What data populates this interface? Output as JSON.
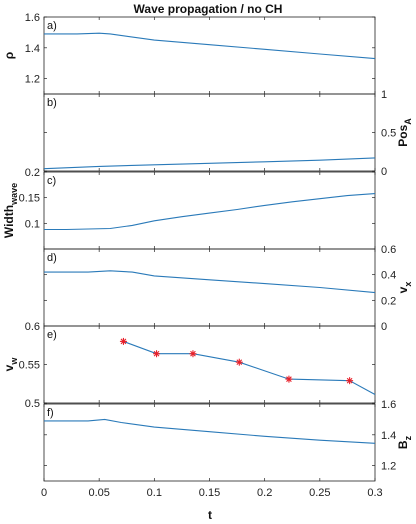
{
  "chart_data": {
    "type": "line",
    "title": "Wave propagation / no CH",
    "xlabel": "t",
    "xlim": [
      0,
      0.3
    ],
    "xticks": [
      "0",
      "0.05",
      "0.1",
      "0.15",
      "0.2",
      "0.25",
      "0.3"
    ],
    "line_color": "#2a7ab9",
    "marker_color": "#e8202a",
    "panels": [
      {
        "label": "a)",
        "ylabel": "ρ",
        "ylabel_side": "left",
        "ylim": [
          1.1,
          1.6
        ],
        "yticks": [
          "1.2",
          "1.4",
          "1.6"
        ],
        "series": [
          {
            "x": [
              0,
              0.03,
              0.05,
              0.06,
              0.1,
              0.15,
              0.2,
              0.25,
              0.3
            ],
            "y": [
              1.49,
              1.49,
              1.495,
              1.49,
              1.45,
              1.42,
              1.39,
              1.36,
              1.33
            ]
          }
        ]
      },
      {
        "label": "b)",
        "ylabel": "Pos_A",
        "ylabel_side": "right",
        "ylim": [
          0,
          1
        ],
        "yticks": [
          "0",
          "0.5",
          "1"
        ],
        "series": [
          {
            "x": [
              0,
              0.05,
              0.1,
              0.15,
              0.2,
              0.25,
              0.3
            ],
            "y": [
              0.03,
              0.06,
              0.08,
              0.1,
              0.12,
              0.14,
              0.17
            ]
          }
        ]
      },
      {
        "label": "c)",
        "ylabel": "Width_wave",
        "ylabel_side": "left",
        "ylim": [
          0.05,
          0.2
        ],
        "yticks": [
          "0.1",
          "0.15",
          "0.2"
        ],
        "series": [
          {
            "x": [
              0,
              0.02,
              0.04,
              0.06,
              0.08,
              0.1,
              0.125,
              0.15,
              0.175,
              0.2,
              0.225,
              0.25,
              0.275,
              0.3
            ],
            "y": [
              0.088,
              0.088,
              0.089,
              0.09,
              0.096,
              0.105,
              0.113,
              0.12,
              0.127,
              0.135,
              0.142,
              0.148,
              0.154,
              0.158
            ]
          }
        ]
      },
      {
        "label": "d)",
        "ylabel": "v_x",
        "ylabel_side": "right",
        "ylim": [
          0,
          0.6
        ],
        "yticks": [
          "0",
          "0.2",
          "0.4",
          "0.6"
        ],
        "series": [
          {
            "x": [
              0,
              0.04,
              0.06,
              0.08,
              0.1,
              0.15,
              0.2,
              0.25,
              0.3
            ],
            "y": [
              0.42,
              0.42,
              0.43,
              0.42,
              0.39,
              0.36,
              0.33,
              0.3,
              0.26
            ]
          }
        ]
      },
      {
        "label": "e)",
        "ylabel": "v_w",
        "ylabel_side": "left",
        "ylim": [
          0.5,
          0.6
        ],
        "yticks": [
          "0.5",
          "0.55",
          "0.6"
        ],
        "series": [
          {
            "x": [
              0.072,
              0.102,
              0.135,
              0.177,
              0.222,
              0.277,
              0.3
            ],
            "y": [
              0.58,
              0.564,
              0.564,
              0.553,
              0.531,
              0.529,
              0.511
            ]
          }
        ],
        "markers": {
          "x": [
            0.072,
            0.102,
            0.135,
            0.177,
            0.222,
            0.277
          ],
          "y": [
            0.58,
            0.564,
            0.564,
            0.553,
            0.531,
            0.529
          ]
        }
      },
      {
        "label": "f)",
        "ylabel": "B_z",
        "ylabel_side": "right",
        "ylim": [
          1.1,
          1.6
        ],
        "yticks": [
          "1.2",
          "1.4",
          "1.6"
        ],
        "series": [
          {
            "x": [
              0,
              0.04,
              0.055,
              0.07,
              0.1,
              0.15,
              0.2,
              0.25,
              0.3
            ],
            "y": [
              1.49,
              1.49,
              1.5,
              1.48,
              1.45,
              1.42,
              1.39,
              1.365,
              1.345
            ]
          }
        ]
      }
    ]
  }
}
